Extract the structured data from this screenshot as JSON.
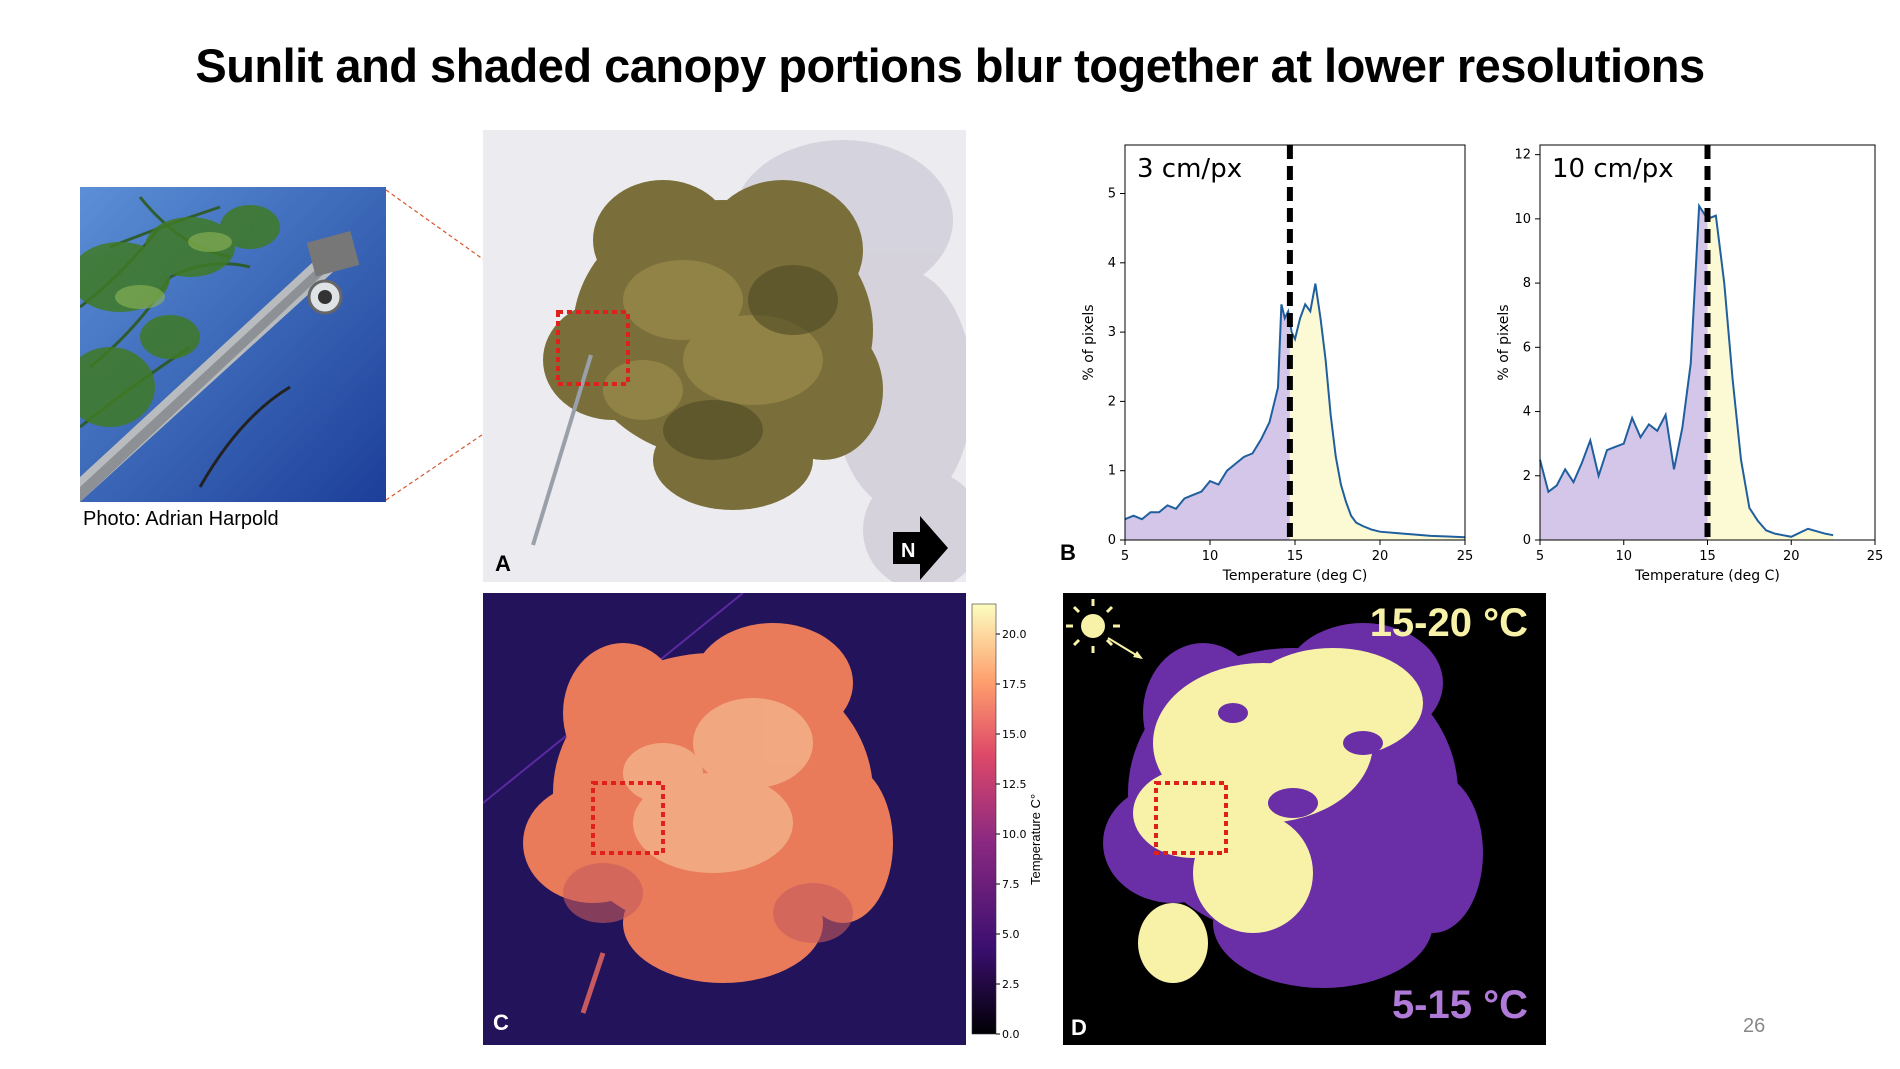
{
  "slide": {
    "title": "Sunlit and shaded canopy portions blur together at lower resolutions",
    "photo_credit": "Photo: Adrian Harpold",
    "page_number": "26"
  },
  "panels": {
    "a": {
      "letter": "A",
      "north_label": "N"
    },
    "b": {
      "letter": "B"
    },
    "c": {
      "letter": "C",
      "colorbar_label": "Temperature C°",
      "colorbar_ticks": [
        "20.0",
        "17.5",
        "15.0",
        "12.5",
        "10.0",
        "7.5",
        "5.0",
        "2.5",
        "0.0"
      ]
    },
    "d": {
      "letter": "D",
      "warm_label": "15-20 °C",
      "cool_label": "5-15 °C",
      "warm_color": "#f7f2a8",
      "cool_color": "#6a2ea6"
    }
  },
  "chart_data": [
    {
      "type": "area",
      "label": "3 cm/px",
      "xlabel": "Temperature (deg C)",
      "ylabel": "% of pixels",
      "xlim": [
        5,
        25
      ],
      "ylim": [
        0,
        5.7
      ],
      "xticks": [
        5,
        10,
        15,
        20,
        25
      ],
      "yticks": [
        0,
        1,
        2,
        3,
        4,
        5
      ],
      "threshold": 14.7,
      "x": [
        5,
        5.5,
        6,
        6.5,
        7,
        7.5,
        8,
        8.5,
        9,
        9.5,
        10,
        10.5,
        11,
        11.5,
        12,
        12.5,
        13,
        13.5,
        14,
        14.2,
        14.4,
        14.6,
        14.8,
        15,
        15.3,
        15.6,
        15.9,
        16.2,
        16.5,
        16.8,
        17.1,
        17.4,
        17.7,
        18,
        18.3,
        18.6,
        19,
        19.5,
        20,
        21,
        22,
        23,
        24,
        25
      ],
      "y": [
        0.3,
        0.35,
        0.3,
        0.4,
        0.4,
        0.5,
        0.45,
        0.6,
        0.65,
        0.7,
        0.85,
        0.8,
        1.0,
        1.1,
        1.2,
        1.25,
        1.45,
        1.7,
        2.2,
        3.4,
        3.2,
        3.3,
        3.0,
        2.9,
        3.2,
        3.4,
        3.3,
        3.7,
        3.2,
        2.6,
        1.8,
        1.2,
        0.8,
        0.55,
        0.35,
        0.25,
        0.2,
        0.15,
        0.12,
        0.1,
        0.08,
        0.06,
        0.05,
        0.04
      ]
    },
    {
      "type": "area",
      "label": "10 cm/px",
      "xlabel": "Temperature (deg C)",
      "ylabel": "% of pixels",
      "xlim": [
        5,
        25
      ],
      "ylim": [
        0,
        12.3
      ],
      "xticks": [
        5,
        10,
        15,
        20,
        25
      ],
      "yticks": [
        0,
        2,
        4,
        6,
        8,
        10,
        12
      ],
      "threshold": 15,
      "x": [
        5,
        5.5,
        6,
        6.5,
        7,
        7.5,
        8,
        8.5,
        9,
        9.5,
        10,
        10.5,
        11,
        11.5,
        12,
        12.5,
        13,
        13.5,
        14,
        14.5,
        15,
        15.5,
        16,
        16.5,
        17,
        17.5,
        18,
        18.5,
        19,
        19.5,
        20,
        21,
        22,
        22.5
      ],
      "y": [
        2.5,
        1.5,
        1.7,
        2.2,
        1.8,
        2.4,
        3.1,
        2.0,
        2.8,
        2.9,
        3.0,
        3.8,
        3.2,
        3.6,
        3.4,
        3.9,
        2.2,
        3.5,
        5.5,
        10.4,
        10.0,
        10.1,
        8.0,
        5.0,
        2.5,
        1.0,
        0.6,
        0.3,
        0.2,
        0.15,
        0.1,
        0.35,
        0.2,
        0.15
      ]
    }
  ]
}
